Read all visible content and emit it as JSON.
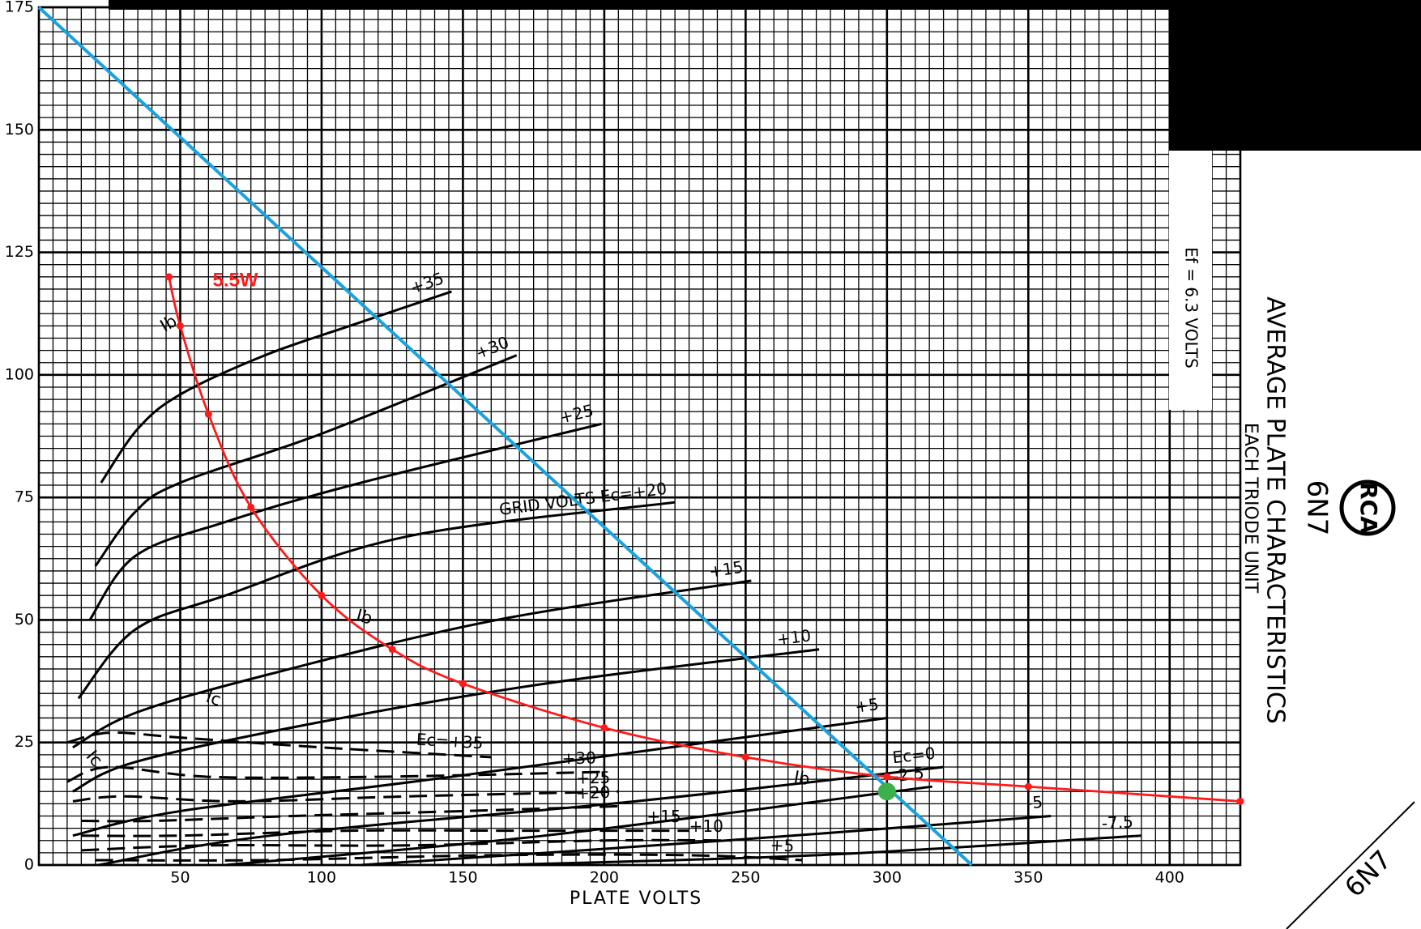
{
  "chart_data": {
    "type": "line",
    "x_label": "PLATE VOLTS",
    "xlim": [
      0,
      425
    ],
    "ylim": [
      0,
      175
    ],
    "xticks": [
      50,
      100,
      150,
      200,
      250,
      300,
      350,
      400
    ],
    "yticks": [
      0,
      25,
      50,
      75,
      100,
      125,
      150,
      175
    ],
    "grid": true,
    "series": [
      {
        "name": "+35",
        "color": "#000000",
        "style": "solid",
        "x": [
          22,
          35,
          50,
          80,
          110,
          146
        ],
        "values": [
          78,
          89,
          96,
          104,
          110,
          117
        ]
      },
      {
        "name": "+30",
        "color": "#000000",
        "style": "solid",
        "x": [
          20,
          34,
          50,
          100,
          169
        ],
        "values": [
          61,
          72,
          78,
          88,
          104
        ]
      },
      {
        "name": "+25",
        "color": "#000000",
        "style": "solid",
        "x": [
          18,
          34,
          66,
          114,
          199
        ],
        "values": [
          50,
          63,
          70,
          78,
          90
        ]
      },
      {
        "name": "GRID VOLTS Ec=+20",
        "color": "#000000",
        "style": "solid",
        "x": [
          14,
          34,
          66,
          130,
          225
        ],
        "values": [
          34,
          48,
          55,
          67,
          74
        ]
      },
      {
        "name": "+15",
        "color": "#000000",
        "style": "solid",
        "x": [
          12,
          34,
          82,
          162,
          252
        ],
        "values": [
          24,
          31,
          39,
          50,
          58
        ]
      },
      {
        "name": "+10",
        "color": "#000000",
        "style": "solid",
        "x": [
          12,
          34,
          98,
          179,
          276
        ],
        "values": [
          15,
          21,
          29,
          37,
          44
        ]
      },
      {
        "name": "+5",
        "color": "#000000",
        "style": "solid",
        "x": [
          12,
          50,
          146,
          300
        ],
        "values": [
          6,
          11,
          18,
          30
        ]
      },
      {
        "name": "Ec=0",
        "color": "#000000",
        "style": "solid",
        "x": [
          21,
          82,
          211,
          320
        ],
        "values": [
          0,
          6,
          13,
          20
        ]
      },
      {
        "name": "-2.5",
        "color": "#000000",
        "style": "solid",
        "x": [
          66,
          179,
          316
        ],
        "values": [
          0,
          6,
          16
        ]
      },
      {
        "name": "-5",
        "color": "#000000",
        "style": "solid",
        "x": [
          114,
          243,
          358
        ],
        "values": [
          0,
          5,
          10
        ]
      },
      {
        "name": "-7.5",
        "color": "#000000",
        "style": "solid",
        "x": [
          162,
          275,
          390
        ],
        "values": [
          0,
          2,
          6
        ]
      },
      {
        "name": "Ec=+35",
        "color": "#000000",
        "style": "dashed",
        "x": [
          10,
          25,
          50,
          100,
          160
        ],
        "values": [
          25,
          27,
          26,
          24,
          22
        ]
      },
      {
        "name": "+30",
        "color": "#000000",
        "style": "dashed",
        "x": [
          10,
          25,
          60,
          120,
          200
        ],
        "values": [
          17,
          20,
          18,
          18,
          19
        ]
      },
      {
        "name": "+25",
        "color": "#000000",
        "style": "dashed",
        "x": [
          12,
          30,
          70,
          130,
          205
        ],
        "values": [
          13,
          14,
          13,
          14,
          15
        ]
      },
      {
        "name": "+20",
        "color": "#000000",
        "style": "dashed",
        "x": [
          15,
          40,
          90,
          150,
          205
        ],
        "values": [
          9,
          9,
          10,
          11,
          12
        ]
      },
      {
        "name": "+15",
        "color": "#000000",
        "style": "dashed",
        "x": [
          15,
          50,
          110,
          170,
          230
        ],
        "values": [
          6,
          6,
          7,
          7,
          7
        ]
      },
      {
        "name": "+10",
        "color": "#000000",
        "style": "dashed",
        "x": [
          15,
          60,
          130,
          200,
          245
        ],
        "values": [
          3,
          4,
          4,
          5,
          5
        ]
      },
      {
        "name": "+5",
        "color": "#000000",
        "style": "dashed",
        "x": [
          20,
          80,
          160,
          230,
          270
        ],
        "values": [
          1,
          1,
          2,
          2,
          1
        ]
      },
      {
        "name": "5.5W",
        "color": "#ff1a1a",
        "style": "overlay",
        "dots": true,
        "x": [
          46,
          50,
          60,
          75,
          100,
          125,
          150,
          200,
          250,
          300,
          350,
          425
        ],
        "values": [
          120,
          110,
          92,
          73,
          55,
          44,
          37,
          28,
          22,
          18,
          16,
          13
        ]
      },
      {
        "color": "#1ba1dc",
        "style": "overlay",
        "x": [
          0,
          330
        ],
        "values": [
          175,
          0
        ]
      }
    ],
    "markers": [
      {
        "x": 300,
        "value": 15,
        "color": "#3cb04a"
      }
    ],
    "annotations": [
      "Ib",
      "Ib",
      "Ib",
      "Ic",
      "Ic"
    ],
    "title_block": {
      "title": "AVERAGE PLATE CHARACTERISTICS",
      "subtitle": "EACH TRIODE UNIT",
      "tube": "6N7",
      "logo": "RCA",
      "filament": "Ef = 6.3 VOLTS",
      "corner": "6N7"
    }
  }
}
